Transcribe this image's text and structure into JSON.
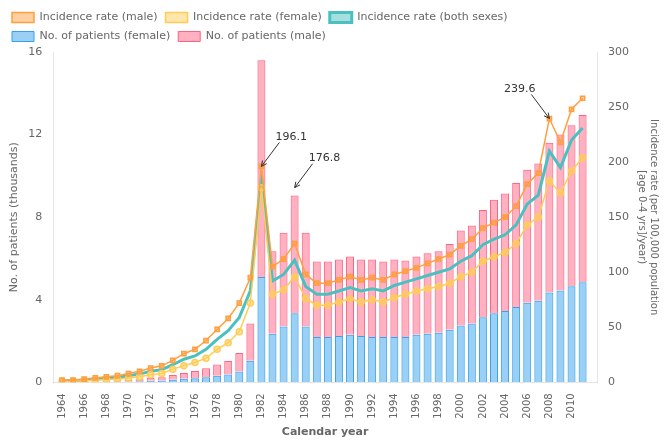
{
  "chart_data": {
    "type": "bar",
    "xlabel": "Calendar year",
    "ylabel": "No. of patients (thousands)",
    "y2label": "Incidence rate (per 100,000 population\n[age 0-4 yrs]/year)",
    "x": [
      1964,
      1965,
      1966,
      1967,
      1968,
      1969,
      1970,
      1971,
      1972,
      1973,
      1974,
      1975,
      1976,
      1977,
      1978,
      1979,
      1980,
      1981,
      1982,
      1983,
      1984,
      1985,
      1986,
      1987,
      1988,
      1989,
      1990,
      1991,
      1992,
      1993,
      1994,
      1995,
      1996,
      1997,
      1998,
      1999,
      2000,
      2001,
      2002,
      2003,
      2004,
      2005,
      2006,
      2007,
      2008,
      2009,
      2010,
      2011
    ],
    "xlim": [
      1963.2,
      2012.3
    ],
    "xticks": [
      1964,
      1966,
      1968,
      1970,
      1972,
      1974,
      1976,
      1978,
      1980,
      1982,
      1984,
      1986,
      1988,
      1990,
      1992,
      1994,
      1996,
      1998,
      2000,
      2002,
      2004,
      2006,
      2008,
      2010
    ],
    "ylim": [
      0,
      16
    ],
    "yticks": [
      0,
      4,
      8,
      12,
      16
    ],
    "y2lim": [
      0,
      300
    ],
    "y2ticks": [
      0,
      50,
      100,
      150,
      200,
      250,
      300
    ],
    "stacked": true,
    "grid": false,
    "legend": "upper left",
    "series": [
      {
        "name": "No. of patients (female)",
        "type": "bar",
        "values": [
          0.01,
          0.01,
          0.015,
          0.015,
          0.025,
          0.03,
          0.04,
          0.05,
          0.08,
          0.09,
          0.13,
          0.17,
          0.2,
          0.25,
          0.32,
          0.38,
          0.52,
          1.05,
          5.1,
          2.35,
          2.7,
          3.35,
          2.7,
          2.2,
          2.2,
          2.25,
          2.3,
          2.25,
          2.2,
          2.2,
          2.2,
          2.2,
          2.3,
          2.35,
          2.4,
          2.55,
          2.75,
          2.85,
          3.15,
          3.35,
          3.45,
          3.65,
          3.85,
          3.95,
          4.35,
          4.45,
          4.65,
          4.85
        ]
      },
      {
        "name": "No. of patients (male)",
        "type": "bar",
        "values": [
          0.02,
          0.02,
          0.03,
          0.03,
          0.05,
          0.06,
          0.08,
          0.1,
          0.14,
          0.16,
          0.22,
          0.28,
          0.35,
          0.43,
          0.55,
          0.65,
          0.9,
          1.8,
          10.5,
          4.0,
          4.55,
          5.7,
          4.55,
          3.65,
          3.65,
          3.7,
          3.8,
          3.7,
          3.75,
          3.65,
          3.75,
          3.7,
          3.8,
          3.9,
          3.95,
          4.15,
          4.6,
          4.75,
          5.2,
          5.5,
          5.7,
          6.0,
          6.45,
          6.65,
          7.25,
          7.55,
          7.8,
          8.1
        ]
      },
      {
        "name": "Incidence rate (male)",
        "type": "line",
        "axis": "y2",
        "marker": "square",
        "values": [
          2,
          2,
          3,
          4,
          5,
          6,
          8,
          10,
          13,
          15,
          20,
          26,
          30,
          38,
          48,
          58,
          72,
          95,
          196.1,
          105,
          112,
          126,
          98,
          90,
          90,
          93,
          96,
          93,
          95,
          93,
          98,
          101,
          104,
          108,
          112,
          116,
          124,
          130,
          140,
          145,
          150,
          160,
          180,
          190,
          239.6,
          218,
          248,
          258
        ]
      },
      {
        "name": "Incidence rate (female)",
        "type": "line",
        "axis": "y2",
        "marker": "circle",
        "values": [
          1,
          1,
          1.5,
          2,
          2.5,
          3,
          4,
          5,
          7,
          8,
          12,
          15,
          18,
          22,
          30,
          36,
          46,
          72,
          176.8,
          80,
          84,
          96,
          76,
          70,
          70,
          73,
          76,
          73,
          75,
          73,
          77,
          80,
          83,
          85,
          87,
          90,
          96,
          100,
          110,
          114,
          118,
          126,
          143,
          150,
          183,
          172,
          192,
          204
        ]
      },
      {
        "name": "Incidence rate (both sexes)",
        "type": "line",
        "axis": "y2",
        "marker": "none",
        "values": [
          1.5,
          1.5,
          2.2,
          3,
          4,
          4.5,
          6,
          7.5,
          10,
          11.5,
          16,
          21,
          24,
          30,
          39,
          47,
          59,
          83,
          186,
          92,
          98,
          111,
          87,
          80,
          80,
          83,
          86,
          83,
          85,
          83,
          88,
          91,
          94,
          97,
          100,
          103,
          110,
          115,
          125,
          130,
          134,
          143,
          162,
          170,
          210,
          195,
          220,
          231
        ]
      }
    ],
    "annotations": [
      {
        "text": "196.1",
        "x": 1982,
        "y": 196.1,
        "axis": "y2"
      },
      {
        "text": "176.8",
        "x": 1985,
        "y": 176.8,
        "axis": "y2"
      },
      {
        "text": "239.6",
        "x": 2008,
        "y": 239.6,
        "axis": "y2"
      }
    ]
  }
}
